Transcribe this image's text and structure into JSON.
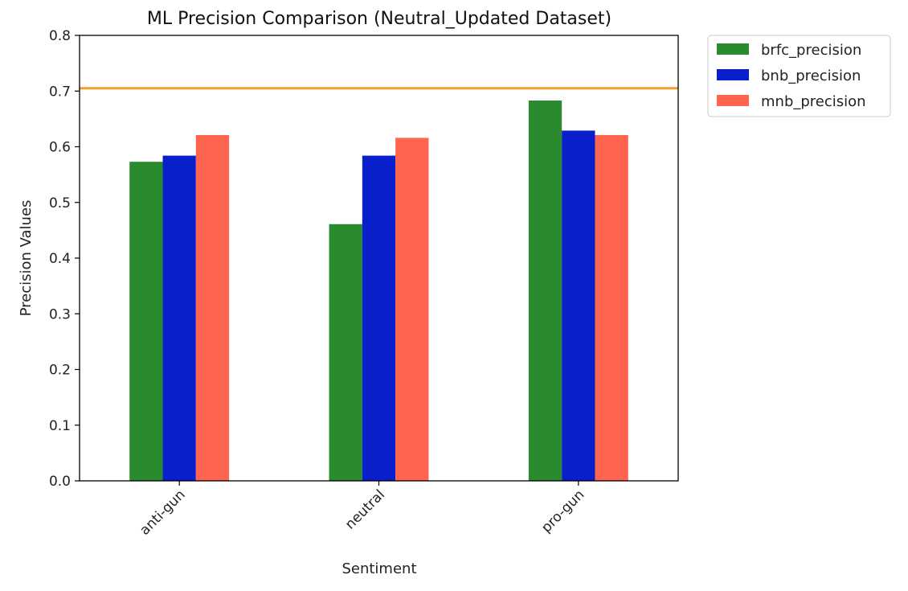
{
  "chart_data": {
    "type": "bar",
    "title": "ML Precision Comparison (Neutral_Updated Dataset)",
    "xlabel": "Sentiment",
    "ylabel": "Precision Values",
    "categories": [
      "anti-gun",
      "neutral",
      "pro-gun"
    ],
    "ylim": [
      0,
      0.8
    ],
    "yticks": [
      "0.0",
      "0.1",
      "0.2",
      "0.3",
      "0.4",
      "0.5",
      "0.6",
      "0.7",
      "0.8"
    ],
    "series": [
      {
        "name": "brfc_precision",
        "color": "#2a8a2e",
        "values": [
          0.573,
          0.461,
          0.683
        ]
      },
      {
        "name": "bnb_precision",
        "color": "#0a1fcc",
        "values": [
          0.584,
          0.584,
          0.629
        ]
      },
      {
        "name": "mnb_precision",
        "color": "#ff644e",
        "values": [
          0.621,
          0.616,
          0.621
        ]
      }
    ],
    "reference_line": {
      "value": 0.705,
      "color": "#f5a02a"
    },
    "grid": false,
    "legend_placement": "outside top-right"
  }
}
